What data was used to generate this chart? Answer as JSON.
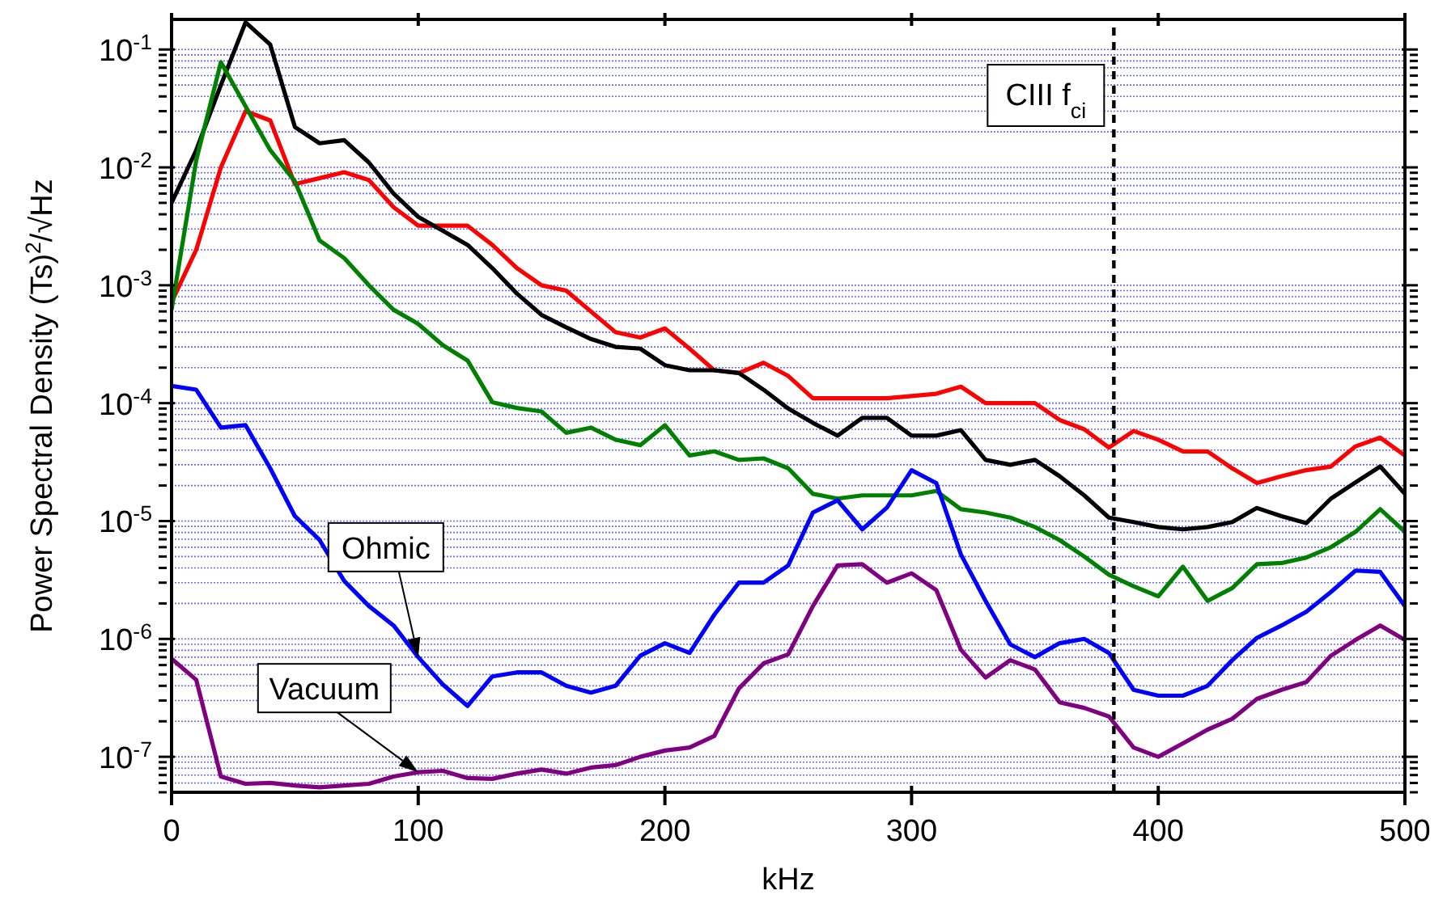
{
  "chart_data": {
    "type": "line",
    "xlabel": "kHz",
    "ylabel": "Power Spectral Density (Ts)$^{2}$/√Hz",
    "x": [
      0,
      10,
      20,
      30,
      40,
      50,
      60,
      70,
      80,
      90,
      100,
      110,
      120,
      130,
      140,
      150,
      160,
      170,
      180,
      190,
      200,
      210,
      220,
      230,
      240,
      250,
      260,
      270,
      280,
      290,
      300,
      310,
      320,
      330,
      340,
      350,
      360,
      370,
      380,
      390,
      400,
      410,
      420,
      430,
      440,
      450,
      460,
      470,
      480,
      490,
      500
    ],
    "series": [
      {
        "color": "#ff0000",
        "values": [
          0.00072,
          0.002,
          0.01,
          0.03,
          0.025,
          0.0072,
          0.0081,
          0.0091,
          0.0078,
          0.0046,
          0.0032,
          0.0032,
          0.0032,
          0.0022,
          0.0014,
          0.001,
          0.0009,
          0.0006,
          0.0004,
          0.00036,
          0.00043,
          0.00029,
          0.00019,
          0.00018,
          0.00022,
          0.00017,
          0.00011,
          0.00011,
          0.00011,
          0.00011,
          0.000115,
          0.00012,
          0.000138,
          0.0001,
          0.0001,
          0.0001,
          7.2e-05,
          6e-05,
          4.2e-05,
          5.8e-05,
          4.9e-05,
          3.9e-05,
          3.9e-05,
          2.8e-05,
          2.1e-05,
          2.4e-05,
          2.7e-05,
          2.9e-05,
          4.3e-05,
          5.1e-05,
          3.6e-05
        ]
      },
      {
        "color": "#000000",
        "values": [
          0.005,
          0.014,
          0.05,
          0.17,
          0.11,
          0.022,
          0.016,
          0.017,
          0.011,
          0.006,
          0.0038,
          0.0029,
          0.0022,
          0.0014,
          0.00085,
          0.00056,
          0.00044,
          0.00035,
          0.0003,
          0.00029,
          0.00021,
          0.00019,
          0.00019,
          0.00018,
          0.00013,
          9e-05,
          6.8e-05,
          5.3e-05,
          7.5e-05,
          7.5e-05,
          5.3e-05,
          5.3e-05,
          5.9e-05,
          3.3e-05,
          3e-05,
          3.3e-05,
          2.4e-05,
          1.65e-05,
          1.07e-05,
          9.8e-06,
          8.9e-06,
          8.5e-06,
          8.9e-06,
          9.8e-06,
          1.29e-05,
          1.1e-05,
          9.6e-06,
          1.55e-05,
          2.13e-05,
          2.9e-05,
          1.7e-05
        ]
      },
      {
        "color": "#008000",
        "values": [
          0.00062,
          0.0115,
          0.078,
          0.033,
          0.014,
          0.0076,
          0.0024,
          0.0017,
          0.001,
          0.00062,
          0.00047,
          0.00031,
          0.00023,
          0.000102,
          9.1e-05,
          8.5e-05,
          5.6e-05,
          6.2e-05,
          4.9e-05,
          4.4e-05,
          6.5e-05,
          3.6e-05,
          3.9e-05,
          3.3e-05,
          3.4e-05,
          2.8e-05,
          1.7e-05,
          1.55e-05,
          1.65e-05,
          1.65e-05,
          1.65e-05,
          1.8e-05,
          1.26e-05,
          1.18e-05,
          1.07e-05,
          8.9e-06,
          6.9e-06,
          5e-06,
          3.5e-06,
          2.8e-06,
          2.3e-06,
          4.1e-06,
          2.1e-06,
          2.7e-06,
          4.3e-06,
          4.4e-06,
          4.9e-06,
          6e-06,
          8.1e-06,
          1.26e-05,
          8.1e-06
        ]
      },
      {
        "color": "#0000ff",
        "values": [
          0.00014,
          0.00013,
          6.2e-05,
          6.5e-05,
          2.8e-05,
          1.1e-05,
          6.9e-06,
          3.1e-06,
          1.9e-06,
          1.3e-06,
          7e-07,
          4.1e-07,
          2.7e-07,
          4.8e-07,
          5.2e-07,
          5.2e-07,
          4e-07,
          3.5e-07,
          4e-07,
          7.2e-07,
          9.2e-07,
          7.6e-07,
          1.6e-06,
          3e-06,
          3e-06,
          4.2e-06,
          1.18e-05,
          1.5e-05,
          8.5e-06,
          1.3e-05,
          2.7e-05,
          2.1e-05,
          5.2e-06,
          2.1e-06,
          9e-07,
          7e-07,
          9.2e-07,
          1e-06,
          7.6e-07,
          3.7e-07,
          3.3e-07,
          3.3e-07,
          4e-07,
          6.6e-07,
          1.02e-06,
          1.3e-06,
          1.7e-06,
          2.5e-06,
          3.8e-06,
          3.7e-06,
          1.9e-06
        ]
      },
      {
        "color": "#800080",
        "values": [
          6.8e-07,
          4.5e-07,
          6.8e-08,
          5.9e-08,
          6e-08,
          5.7e-08,
          5.5e-08,
          5.7e-08,
          5.9e-08,
          6.8e-08,
          7.4e-08,
          7.6e-08,
          6.6e-08,
          6.5e-08,
          7.2e-08,
          7.8e-08,
          7.2e-08,
          8.1e-08,
          8.5e-08,
          1e-07,
          1.13e-07,
          1.2e-07,
          1.5e-07,
          3.8e-07,
          6.2e-07,
          7.4e-07,
          1.9e-06,
          4.2e-06,
          4.3e-06,
          3e-06,
          3.6e-06,
          2.6e-06,
          8.1e-07,
          4.7e-07,
          6.6e-07,
          5.5e-07,
          2.9e-07,
          2.6e-07,
          2.2e-07,
          1.2e-07,
          1e-07,
          1.3e-07,
          1.7e-07,
          2.1e-07,
          3.1e-07,
          3.7e-07,
          4.3e-07,
          7.2e-07,
          9.8e-07,
          1.3e-06,
          9.8e-07
        ]
      }
    ],
    "log": "y",
    "xlim": [
      0,
      500
    ],
    "xticks": [
      0,
      100,
      200,
      300,
      400,
      500
    ],
    "ylim": [
      5e-08,
      0.18
    ],
    "yticks": [
      {
        "value": 5e-08,
        "label": null
      },
      {
        "value": 6e-08,
        "label": null
      },
      {
        "value": 7e-08,
        "label": null
      },
      {
        "value": 8e-08,
        "label": null
      },
      {
        "value": 9e-08,
        "label": null
      },
      {
        "value": 1e-07,
        "label": "10$^{-7}$"
      },
      {
        "value": 2e-07,
        "label": null
      },
      {
        "value": 3e-07,
        "label": null
      },
      {
        "value": 4e-07,
        "label": null
      },
      {
        "value": 5e-07,
        "label": null
      },
      {
        "value": 6e-07,
        "label": null
      },
      {
        "value": 7e-07,
        "label": null
      },
      {
        "value": 8e-07,
        "label": null
      },
      {
        "value": 9e-07,
        "label": null
      },
      {
        "value": 1e-06,
        "label": "10$^{-6}$"
      },
      {
        "value": 2e-06,
        "label": null
      },
      {
        "value": 3e-06,
        "label": null
      },
      {
        "value": 4e-06,
        "label": null
      },
      {
        "value": 5e-06,
        "label": null
      },
      {
        "value": 6e-06,
        "label": null
      },
      {
        "value": 7e-06,
        "label": null
      },
      {
        "value": 8e-06,
        "label": null
      },
      {
        "value": 9e-06,
        "label": null
      },
      {
        "value": 1e-05,
        "label": "10$^{-5}$"
      },
      {
        "value": 2e-05,
        "label": null
      },
      {
        "value": 3e-05,
        "label": null
      },
      {
        "value": 4e-05,
        "label": null
      },
      {
        "value": 5e-05,
        "label": null
      },
      {
        "value": 6e-05,
        "label": null
      },
      {
        "value": 7e-05,
        "label": null
      },
      {
        "value": 8e-05,
        "label": null
      },
      {
        "value": 9e-05,
        "label": null
      },
      {
        "value": 0.0001,
        "label": "10$^{-4}$"
      },
      {
        "value": 0.0002,
        "label": null
      },
      {
        "value": 0.0003,
        "label": null
      },
      {
        "value": 0.0004,
        "label": null
      },
      {
        "value": 0.0005,
        "label": null
      },
      {
        "value": 0.0006,
        "label": null
      },
      {
        "value": 0.0007,
        "label": null
      },
      {
        "value": 0.0008,
        "label": null
      },
      {
        "value": 0.0009,
        "label": null
      },
      {
        "value": 0.001,
        "label": "10$^{-3}$"
      },
      {
        "value": 0.002,
        "label": null
      },
      {
        "value": 0.003,
        "label": null
      },
      {
        "value": 0.004,
        "label": null
      },
      {
        "value": 0.005,
        "label": null
      },
      {
        "value": 0.006,
        "label": null
      },
      {
        "value": 0.007,
        "label": null
      },
      {
        "value": 0.008,
        "label": null
      },
      {
        "value": 0.009,
        "label": null
      },
      {
        "value": 0.01,
        "label": "10$^{-2}$"
      },
      {
        "value": 0.02,
        "label": null
      },
      {
        "value": 0.03,
        "label": null
      },
      {
        "value": 0.04,
        "label": null
      },
      {
        "value": 0.05,
        "label": null
      },
      {
        "value": 0.06,
        "label": null
      },
      {
        "value": 0.07,
        "label": null
      },
      {
        "value": 0.08,
        "label": null
      },
      {
        "value": 0.09,
        "label": null
      },
      {
        "value": 0.1,
        "label": "10$^{-1}$"
      }
    ],
    "grid": "y",
    "ref_lines": [
      {
        "axis": "x",
        "value": 382,
        "label": "CIII f$_{ci}$",
        "line_style": "dashed",
        "color": "#000000"
      }
    ],
    "annotations": [
      {
        "text": "Ohmic",
        "x": 100,
        "y": 7e-07
      },
      {
        "text": "Vacuum",
        "x": 100,
        "y": 7.4e-08
      }
    ]
  }
}
